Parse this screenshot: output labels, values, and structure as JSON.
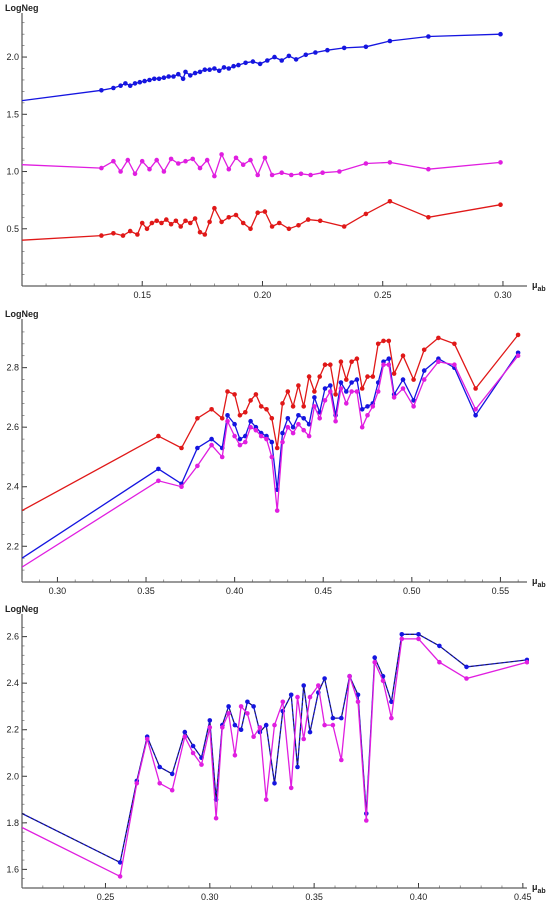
{
  "chart_data": [
    {
      "type": "line",
      "ylabel": "LogNeg",
      "xlabel_main": "μ",
      "xlabel_sub": "ab",
      "xlim": [
        0.1,
        0.31
      ],
      "ylim": [
        0.0,
        2.35
      ],
      "xticks": [
        0.15,
        0.2,
        0.25,
        0.3
      ],
      "xtick_labels": [
        "0.15",
        "0.20",
        "0.25",
        "0.30"
      ],
      "yticks": [
        0.5,
        1.0,
        1.5,
        2.0
      ],
      "ytick_labels": [
        "0.5",
        "1.0",
        "1.5",
        "2.0"
      ],
      "series": [
        {
          "color": "#1515e0",
          "x": [
            0.1,
            0.133,
            0.138,
            0.141,
            0.143,
            0.145,
            0.147,
            0.149,
            0.151,
            0.153,
            0.155,
            0.157,
            0.159,
            0.161,
            0.163,
            0.165,
            0.167,
            0.168,
            0.17,
            0.172,
            0.174,
            0.176,
            0.178,
            0.18,
            0.182,
            0.184,
            0.186,
            0.188,
            0.19,
            0.193,
            0.196,
            0.199,
            0.202,
            0.205,
            0.208,
            0.211,
            0.214,
            0.218,
            0.222,
            0.227,
            0.234,
            0.243,
            0.253,
            0.269,
            0.299
          ],
          "y": [
            1.62,
            1.71,
            1.73,
            1.75,
            1.77,
            1.75,
            1.77,
            1.78,
            1.79,
            1.8,
            1.81,
            1.81,
            1.82,
            1.83,
            1.83,
            1.85,
            1.81,
            1.87,
            1.84,
            1.86,
            1.87,
            1.89,
            1.89,
            1.9,
            1.88,
            1.91,
            1.9,
            1.92,
            1.93,
            1.95,
            1.96,
            1.94,
            1.97,
            2.0,
            1.97,
            2.01,
            1.98,
            2.02,
            2.04,
            2.06,
            2.08,
            2.09,
            2.14,
            2.18,
            2.2
          ]
        },
        {
          "color": "#e01ee0",
          "x": [
            0.1,
            0.133,
            0.138,
            0.141,
            0.144,
            0.147,
            0.15,
            0.153,
            0.156,
            0.159,
            0.162,
            0.165,
            0.168,
            0.171,
            0.174,
            0.177,
            0.18,
            0.183,
            0.186,
            0.189,
            0.192,
            0.195,
            0.198,
            0.201,
            0.204,
            0.208,
            0.212,
            0.216,
            0.22,
            0.225,
            0.232,
            0.243,
            0.253,
            0.269,
            0.299
          ],
          "y": [
            1.06,
            1.03,
            1.09,
            1.0,
            1.1,
            0.98,
            1.09,
            1.02,
            1.1,
            1.0,
            1.11,
            1.07,
            1.09,
            1.11,
            1.03,
            1.1,
            0.96,
            1.15,
            1.02,
            1.12,
            1.06,
            1.1,
            0.97,
            1.12,
            0.97,
            0.99,
            0.97,
            0.98,
            0.97,
            0.99,
            1.0,
            1.07,
            1.08,
            1.02,
            1.08
          ]
        },
        {
          "color": "#e01818",
          "x": [
            0.1,
            0.133,
            0.138,
            0.142,
            0.145,
            0.148,
            0.15,
            0.152,
            0.154,
            0.156,
            0.158,
            0.16,
            0.162,
            0.164,
            0.166,
            0.168,
            0.17,
            0.172,
            0.174,
            0.176,
            0.178,
            0.18,
            0.183,
            0.186,
            0.189,
            0.192,
            0.195,
            0.198,
            0.201,
            0.204,
            0.207,
            0.211,
            0.215,
            0.219,
            0.224,
            0.234,
            0.243,
            0.253,
            0.269,
            0.299
          ],
          "y": [
            0.4,
            0.44,
            0.46,
            0.44,
            0.48,
            0.45,
            0.55,
            0.5,
            0.55,
            0.57,
            0.55,
            0.58,
            0.54,
            0.57,
            0.52,
            0.57,
            0.55,
            0.59,
            0.47,
            0.45,
            0.56,
            0.68,
            0.56,
            0.6,
            0.62,
            0.55,
            0.5,
            0.64,
            0.65,
            0.52,
            0.55,
            0.5,
            0.53,
            0.58,
            0.57,
            0.52,
            0.63,
            0.74,
            0.6,
            0.71
          ]
        }
      ]
    },
    {
      "type": "line",
      "ylabel": "LogNeg",
      "xlabel_main": "μ",
      "xlabel_sub": "ab",
      "xlim": [
        0.28,
        0.565
      ],
      "ylim": [
        2.08,
        2.95
      ],
      "xticks": [
        0.3,
        0.35,
        0.4,
        0.45,
        0.5,
        0.55
      ],
      "xtick_labels": [
        "0.30",
        "0.35",
        "0.40",
        "0.45",
        "0.50",
        "0.55"
      ],
      "yticks": [
        2.2,
        2.4,
        2.6,
        2.8
      ],
      "ytick_labels": [
        "2.2",
        "2.4",
        "2.6",
        "2.8"
      ],
      "series": [
        {
          "color": "#e01818",
          "x": [
            0.28,
            0.357,
            0.37,
            0.379,
            0.387,
            0.393,
            0.396,
            0.4,
            0.403,
            0.406,
            0.409,
            0.412,
            0.415,
            0.418,
            0.421,
            0.424,
            0.427,
            0.43,
            0.433,
            0.436,
            0.439,
            0.442,
            0.445,
            0.448,
            0.451,
            0.454,
            0.457,
            0.46,
            0.463,
            0.466,
            0.469,
            0.472,
            0.475,
            0.478,
            0.481,
            0.484,
            0.487,
            0.49,
            0.495,
            0.501,
            0.507,
            0.515,
            0.524,
            0.536,
            0.56
          ],
          "y": [
            2.32,
            2.57,
            2.53,
            2.63,
            2.66,
            2.63,
            2.72,
            2.71,
            2.64,
            2.65,
            2.69,
            2.71,
            2.67,
            2.66,
            2.63,
            2.53,
            2.68,
            2.72,
            2.67,
            2.74,
            2.67,
            2.77,
            2.72,
            2.77,
            2.81,
            2.81,
            2.71,
            2.82,
            2.76,
            2.82,
            2.83,
            2.73,
            2.77,
            2.77,
            2.88,
            2.89,
            2.89,
            2.78,
            2.84,
            2.76,
            2.86,
            2.9,
            2.88,
            2.73,
            2.91
          ]
        },
        {
          "color": "#1515e0",
          "x": [
            0.28,
            0.357,
            0.37,
            0.379,
            0.387,
            0.393,
            0.396,
            0.4,
            0.403,
            0.406,
            0.409,
            0.412,
            0.415,
            0.418,
            0.421,
            0.424,
            0.427,
            0.43,
            0.433,
            0.436,
            0.439,
            0.442,
            0.445,
            0.448,
            0.451,
            0.454,
            0.457,
            0.46,
            0.463,
            0.466,
            0.469,
            0.472,
            0.475,
            0.478,
            0.481,
            0.484,
            0.487,
            0.49,
            0.495,
            0.501,
            0.507,
            0.515,
            0.524,
            0.536,
            0.56
          ],
          "y": [
            2.16,
            2.46,
            2.41,
            2.53,
            2.56,
            2.53,
            2.64,
            2.61,
            2.56,
            2.57,
            2.62,
            2.6,
            2.58,
            2.57,
            2.55,
            2.39,
            2.58,
            2.63,
            2.6,
            2.64,
            2.63,
            2.61,
            2.7,
            2.65,
            2.73,
            2.74,
            2.64,
            2.75,
            2.72,
            2.75,
            2.76,
            2.66,
            2.67,
            2.68,
            2.75,
            2.82,
            2.83,
            2.71,
            2.76,
            2.69,
            2.79,
            2.83,
            2.8,
            2.64,
            2.85
          ]
        },
        {
          "color": "#e01ee0",
          "x": [
            0.28,
            0.357,
            0.37,
            0.379,
            0.387,
            0.393,
            0.396,
            0.4,
            0.403,
            0.406,
            0.409,
            0.412,
            0.415,
            0.418,
            0.421,
            0.424,
            0.427,
            0.43,
            0.433,
            0.436,
            0.439,
            0.442,
            0.445,
            0.448,
            0.451,
            0.454,
            0.457,
            0.46,
            0.463,
            0.466,
            0.469,
            0.472,
            0.475,
            0.478,
            0.481,
            0.484,
            0.487,
            0.49,
            0.495,
            0.501,
            0.507,
            0.515,
            0.524,
            0.536,
            0.56
          ],
          "y": [
            2.13,
            2.42,
            2.4,
            2.47,
            2.54,
            2.5,
            2.62,
            2.57,
            2.54,
            2.55,
            2.6,
            2.59,
            2.57,
            2.56,
            2.5,
            2.32,
            2.55,
            2.6,
            2.58,
            2.61,
            2.59,
            2.57,
            2.67,
            2.63,
            2.69,
            2.72,
            2.62,
            2.73,
            2.68,
            2.72,
            2.72,
            2.6,
            2.64,
            2.67,
            2.72,
            2.81,
            2.81,
            2.7,
            2.73,
            2.67,
            2.76,
            2.82,
            2.81,
            2.66,
            2.84
          ]
        }
      ]
    },
    {
      "type": "line",
      "ylabel": "LogNeg",
      "xlabel_main": "μ",
      "xlabel_sub": "ab",
      "xlim": [
        0.21,
        0.452
      ],
      "ylim": [
        1.52,
        2.68
      ],
      "xticks": [
        0.25,
        0.3,
        0.35,
        0.4,
        0.45
      ],
      "xtick_labels": [
        "0.25",
        "0.30",
        "0.35",
        "0.40",
        "0.45"
      ],
      "yticks": [
        1.6,
        1.8,
        2.0,
        2.2,
        2.4,
        2.6
      ],
      "ytick_labels": [
        "1.6",
        "1.8",
        "2.0",
        "2.2",
        "2.4",
        "2.6"
      ],
      "series": [
        {
          "color": "#1515e0",
          "dashed_overlay": true,
          "x": [
            0.21,
            0.257,
            0.265,
            0.27,
            0.276,
            0.282,
            0.288,
            0.292,
            0.296,
            0.3,
            0.303,
            0.306,
            0.309,
            0.312,
            0.315,
            0.318,
            0.321,
            0.324,
            0.327,
            0.331,
            0.335,
            0.339,
            0.342,
            0.345,
            0.348,
            0.352,
            0.355,
            0.359,
            0.363,
            0.367,
            0.371,
            0.375,
            0.379,
            0.383,
            0.387,
            0.392,
            0.4,
            0.41,
            0.423,
            0.452
          ],
          "y": [
            1.84,
            1.63,
            1.98,
            2.17,
            2.04,
            2.01,
            2.19,
            2.13,
            2.08,
            2.24,
            1.9,
            2.22,
            2.3,
            2.22,
            2.2,
            2.32,
            2.3,
            2.19,
            2.22,
            1.97,
            2.28,
            2.35,
            2.04,
            2.39,
            2.19,
            2.36,
            2.42,
            2.25,
            2.25,
            2.43,
            2.35,
            1.84,
            2.51,
            2.43,
            2.32,
            2.61,
            2.61,
            2.56,
            2.47,
            2.5
          ]
        },
        {
          "color": "#e01ee0",
          "x": [
            0.21,
            0.257,
            0.265,
            0.27,
            0.276,
            0.282,
            0.288,
            0.292,
            0.296,
            0.3,
            0.303,
            0.306,
            0.309,
            0.312,
            0.315,
            0.318,
            0.321,
            0.324,
            0.327,
            0.331,
            0.335,
            0.339,
            0.342,
            0.345,
            0.348,
            0.352,
            0.355,
            0.359,
            0.363,
            0.367,
            0.371,
            0.375,
            0.379,
            0.383,
            0.387,
            0.392,
            0.4,
            0.41,
            0.423,
            0.452
          ],
          "y": [
            1.78,
            1.57,
            1.97,
            2.16,
            1.97,
            1.94,
            2.17,
            2.1,
            2.05,
            2.21,
            1.82,
            2.21,
            2.27,
            2.09,
            2.3,
            2.27,
            2.17,
            2.21,
            1.9,
            2.22,
            2.32,
            1.95,
            2.34,
            2.16,
            2.34,
            2.39,
            2.22,
            2.22,
            2.07,
            2.43,
            2.32,
            1.81,
            2.49,
            2.41,
            2.25,
            2.59,
            2.59,
            2.49,
            2.42,
            2.49
          ]
        }
      ]
    }
  ]
}
